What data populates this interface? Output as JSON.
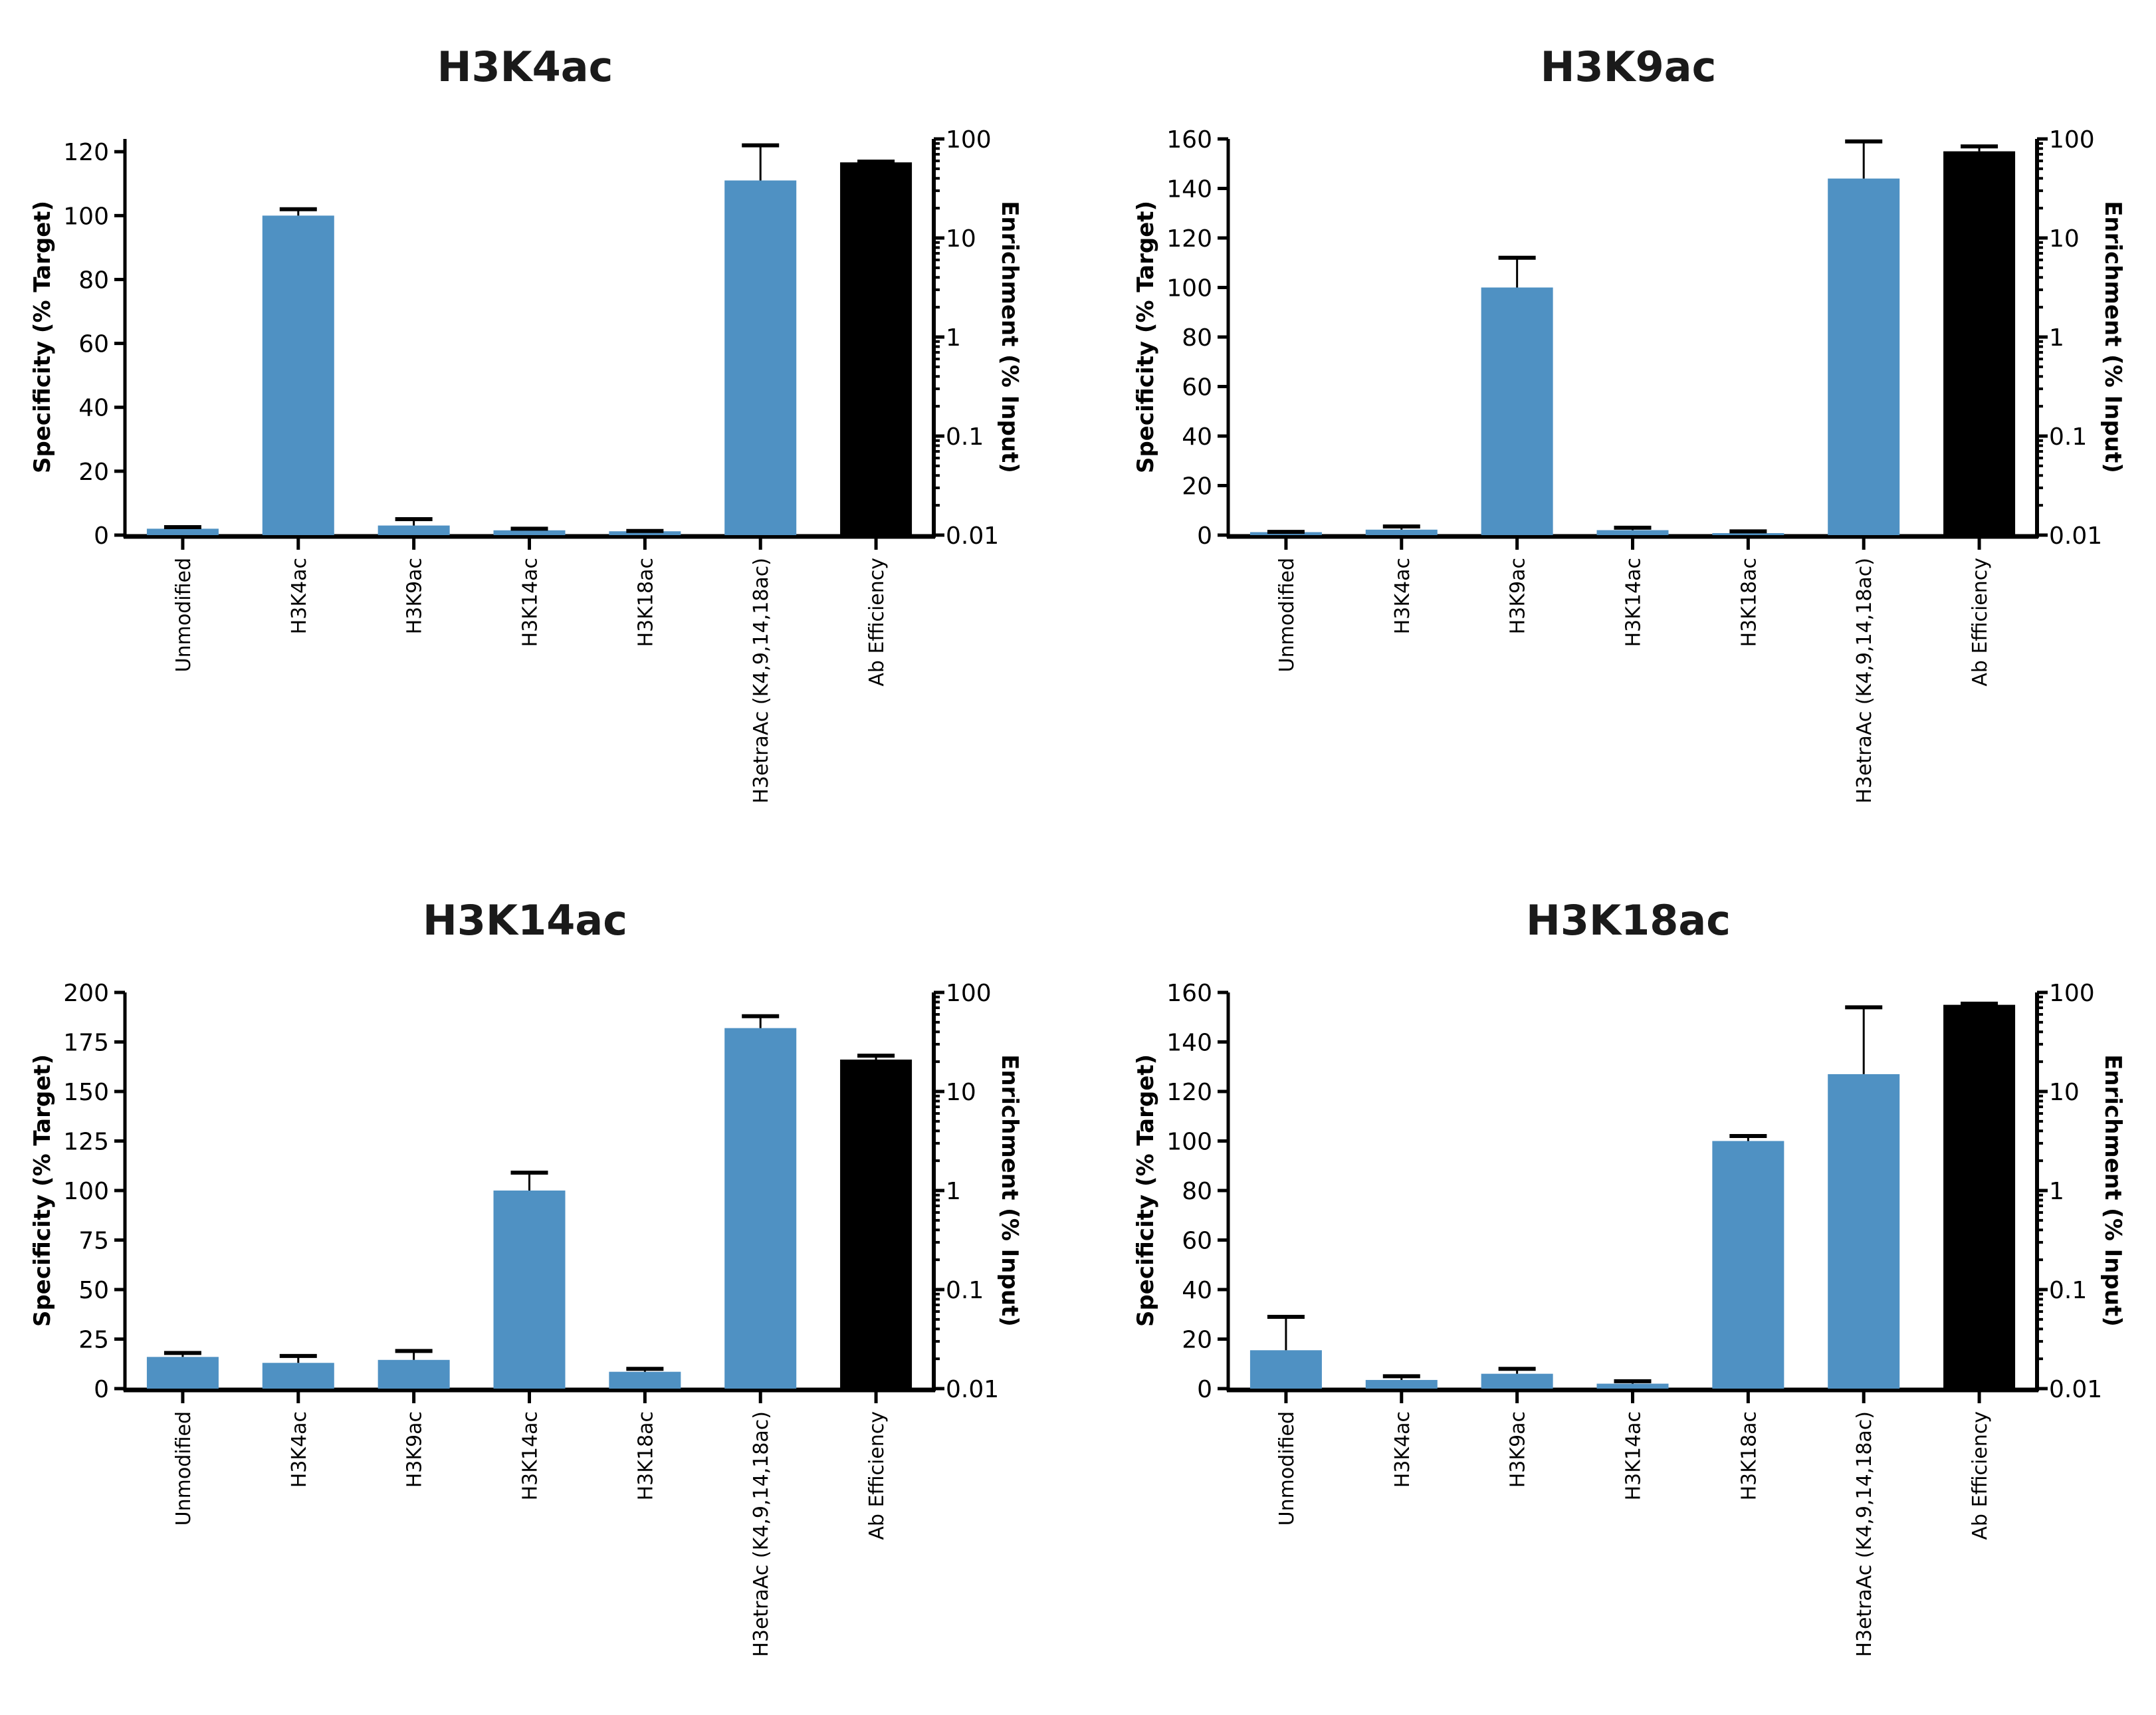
{
  "colors": {
    "target_bar": "#4f91c3",
    "efficiency_bar": "#000000",
    "axis": "#000000"
  },
  "chart_data": [
    {
      "type": "bar",
      "title": "H3K4ac",
      "ylabel": "Specificity (% Target)",
      "y2label": "Enrichment (% Input)",
      "categories": [
        "Unmodified",
        "H3K4ac",
        "H3K9ac",
        "H3K14ac",
        "H3K18ac",
        "H3etraAc (K4,9,14,18ac)",
        "Ab Efficiency"
      ],
      "ylim": [
        0,
        124
      ],
      "yticks": [
        "0",
        "20",
        "40",
        "60",
        "80",
        "100",
        "120"
      ],
      "y2lim": [
        0.01,
        100
      ],
      "y2ticks": [
        "0.01",
        "0.1",
        "1",
        "10",
        "100"
      ],
      "specificity": {
        "values": [
          2,
          100,
          3,
          1.5,
          1.2,
          111
        ],
        "error_upper": [
          2.5,
          102,
          5,
          2,
          1.3,
          122
        ]
      },
      "enrichment": {
        "value": 58,
        "error_upper": 59
      }
    },
    {
      "type": "bar",
      "title": "H3K9ac",
      "ylabel": "Specificity (% Target)",
      "y2label": "Enrichment (% Input)",
      "categories": [
        "Unmodified",
        "H3K4ac",
        "H3K9ac",
        "H3K14ac",
        "H3K18ac",
        "H3etraAc (K4,9,14,18ac)",
        "Ab Efficiency"
      ],
      "ylim": [
        0,
        160
      ],
      "yticks": [
        "0",
        "20",
        "40",
        "60",
        "80",
        "100",
        "120",
        "140",
        "160"
      ],
      "y2lim": [
        0.01,
        100
      ],
      "y2ticks": [
        "0.01",
        "0.1",
        "1",
        "10",
        "100"
      ],
      "specificity": {
        "values": [
          1.2,
          2.2,
          100,
          2,
          0.8,
          144
        ],
        "error_upper": [
          1.3,
          3.5,
          112,
          3,
          1.5,
          159
        ]
      },
      "enrichment": {
        "value": 75,
        "error_upper": 84
      }
    },
    {
      "type": "bar",
      "title": "H3K14ac",
      "ylabel": "Specificity (% Target)",
      "y2label": "Enrichment (% Input)",
      "categories": [
        "Unmodified",
        "H3K4ac",
        "H3K9ac",
        "H3K14ac",
        "H3K18ac",
        "H3etraAc (K4,9,14,18ac)",
        "Ab Efficiency"
      ],
      "ylim": [
        0,
        200
      ],
      "yticks": [
        "0",
        "25",
        "50",
        "75",
        "100",
        "125",
        "150",
        "175",
        "200"
      ],
      "y2lim": [
        0.01,
        100
      ],
      "y2ticks": [
        "0.01",
        "0.1",
        "1",
        "10",
        "100"
      ],
      "specificity": {
        "values": [
          16,
          13,
          14.5,
          100,
          8.5,
          182
        ],
        "error_upper": [
          18,
          16.5,
          19,
          109,
          10,
          188
        ]
      },
      "enrichment": {
        "value": 21,
        "error_upper": 23
      }
    },
    {
      "type": "bar",
      "title": "H3K18ac",
      "ylabel": "Specificity (% Target)",
      "y2label": "Enrichment (% Input)",
      "categories": [
        "Unmodified",
        "H3K4ac",
        "H3K9ac",
        "H3K14ac",
        "H3K18ac",
        "H3etraAc (K4,9,14,18ac)",
        "Ab Efficiency"
      ],
      "ylim": [
        0,
        160
      ],
      "yticks": [
        "0",
        "20",
        "40",
        "60",
        "80",
        "100",
        "120",
        "140",
        "160"
      ],
      "y2lim": [
        0.01,
        100
      ],
      "y2ticks": [
        "0.01",
        "0.1",
        "1",
        "10",
        "100"
      ],
      "specificity": {
        "values": [
          15.5,
          3.5,
          6,
          2,
          100,
          127
        ],
        "error_upper": [
          29,
          5,
          8,
          3,
          102,
          154
        ]
      },
      "enrichment": {
        "value": 75,
        "error_upper": 77
      }
    }
  ]
}
